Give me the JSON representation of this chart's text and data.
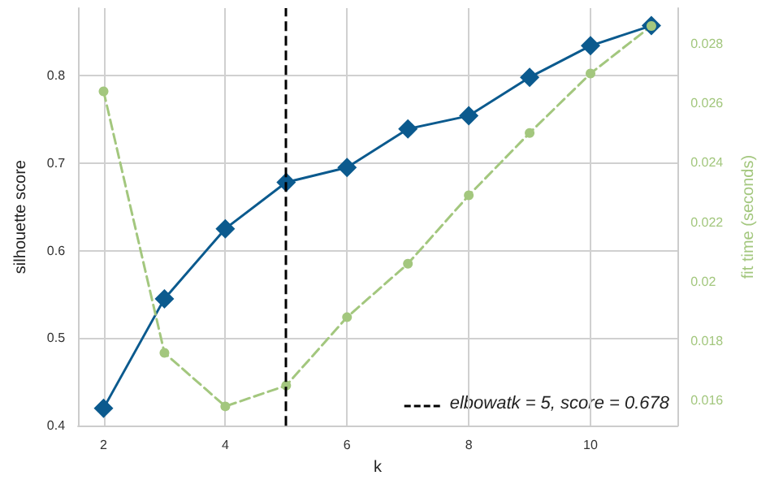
{
  "chart_data": {
    "type": "line",
    "x": [
      2,
      3,
      4,
      5,
      6,
      7,
      8,
      9,
      10,
      11
    ],
    "xlabel": "k",
    "ylabel": "silhouette score",
    "y2label": "fit time (seconds)",
    "series": [
      {
        "color": "#0b5a8e",
        "marker": "diamond",
        "line_style": "solid",
        "values": [
          0.42,
          0.545,
          0.625,
          0.678,
          0.695,
          0.739,
          0.754,
          0.798,
          0.834,
          0.857
        ]
      },
      {
        "color": "#a3c77e",
        "marker": "circle",
        "line_style": "dashed",
        "axis": "y2",
        "values": [
          0.0264,
          0.0176,
          0.0158,
          0.0165,
          0.0188,
          0.0206,
          0.0229,
          0.025,
          0.027,
          0.0286
        ]
      }
    ],
    "xlim": [
      1.58,
      11.43
    ],
    "xticks": [
      2,
      4,
      6,
      8,
      10
    ],
    "ylim": [
      0.4,
      0.877
    ],
    "yticks": [
      0.4,
      0.5,
      0.6,
      0.7,
      0.8
    ],
    "y2lim": [
      0.01515,
      0.0292
    ],
    "y2ticks": [
      0.016,
      0.018,
      0.02,
      0.022,
      0.024,
      0.026,
      0.028
    ],
    "ref_lines": [
      {
        "axis": "x",
        "value": 5,
        "label": "elbowatk = 5, score = 0.678",
        "color": "#000000",
        "line_style": "dashed"
      }
    ],
    "grid": true,
    "legend": "bottom right"
  }
}
